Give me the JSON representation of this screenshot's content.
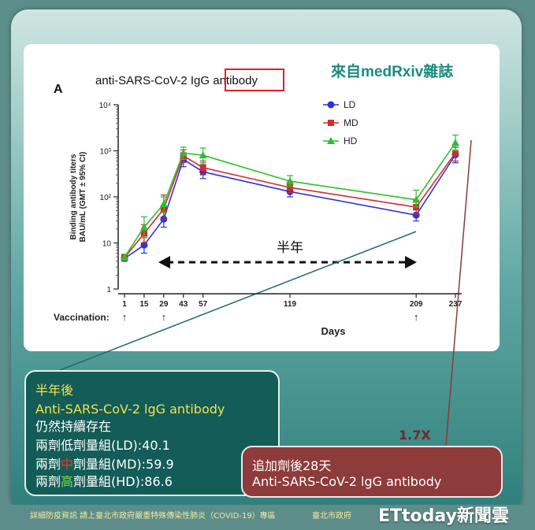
{
  "source_label": "來自medRxiv雜誌",
  "panel_letter": "A",
  "chart_title_prefix": "anti-SARS-CoV-2 IgG ",
  "chart_title_highlight": "antibody",
  "half_year_label": "半年",
  "vaccination_label": "Vaccination:",
  "chart_data": {
    "type": "line",
    "xlabel": "Days",
    "ylabel_line1": "Binding antibody titers",
    "ylabel_line2": "BAU/mL (GMT ± 95% CI)",
    "x": [
      1,
      15,
      29,
      43,
      57,
      119,
      209,
      237
    ],
    "x_tick_labels": [
      "1",
      "15",
      "29",
      "43",
      "57",
      "119",
      "209",
      "237"
    ],
    "y_scale": "log",
    "ylim": [
      1,
      10000
    ],
    "y_ticks": [
      1,
      10,
      100,
      1000,
      10000
    ],
    "y_tick_labels": [
      "1",
      "10",
      "10²",
      "10³",
      "10⁴"
    ],
    "vaccination_days": [
      1,
      29,
      209
    ],
    "legend_position": "top-right",
    "series": [
      {
        "name": "LD",
        "color": "#2b35d8",
        "marker": "circle",
        "values": [
          4.6,
          9.0,
          33,
          650,
          350,
          130,
          40.1,
          820
        ],
        "ci_low": [
          4.0,
          6.0,
          22,
          450,
          250,
          100,
          30,
          550
        ],
        "ci_high": [
          5.4,
          13,
          48,
          900,
          500,
          170,
          52,
          1200
        ]
      },
      {
        "name": "MD",
        "color": "#d42b2b",
        "marker": "square",
        "values": [
          4.8,
          16,
          55,
          780,
          430,
          160,
          59.9,
          900
        ],
        "ci_low": [
          4.1,
          10,
          33,
          560,
          300,
          125,
          42,
          600
        ],
        "ci_high": [
          5.6,
          25,
          110,
          1050,
          600,
          210,
          85,
          1350
        ]
      },
      {
        "name": "HD",
        "color": "#2fbd2f",
        "marker": "triangle",
        "values": [
          4.9,
          22,
          70,
          900,
          800,
          220,
          86.6,
          1500
        ],
        "ci_low": [
          4.2,
          13,
          45,
          650,
          550,
          170,
          60,
          1000
        ],
        "ci_high": [
          5.7,
          37,
          100,
          1200,
          1150,
          290,
          140,
          2200
        ]
      }
    ]
  },
  "left_box": {
    "line1": "半年後",
    "line2": "Anti-SARS-CoV-2 lgG antibody",
    "line3": "仍然持續存在",
    "ld_prefix": "兩劑",
    "ld_hl": "低",
    "ld_suffix": "劑量組(LD):40.1",
    "md_prefix": "兩劑",
    "md_hl": "中",
    "md_suffix": "劑量組(MD):59.9",
    "hd_prefix": "兩劑",
    "hd_hl": "高",
    "hd_suffix": "劑量組(HD):86.6"
  },
  "right_box": {
    "line1": "追加劑後28天",
    "line2": "Anti-SARS-CoV-2 lgG antibody"
  },
  "fold_change": "1.7X",
  "footer": "詳細防疫資訊 請上臺北市政府嚴重特殊傳染性肺炎（COVID-19）專區",
  "footer_org": "臺北市政府",
  "watermark": "ETtoday新聞雲"
}
